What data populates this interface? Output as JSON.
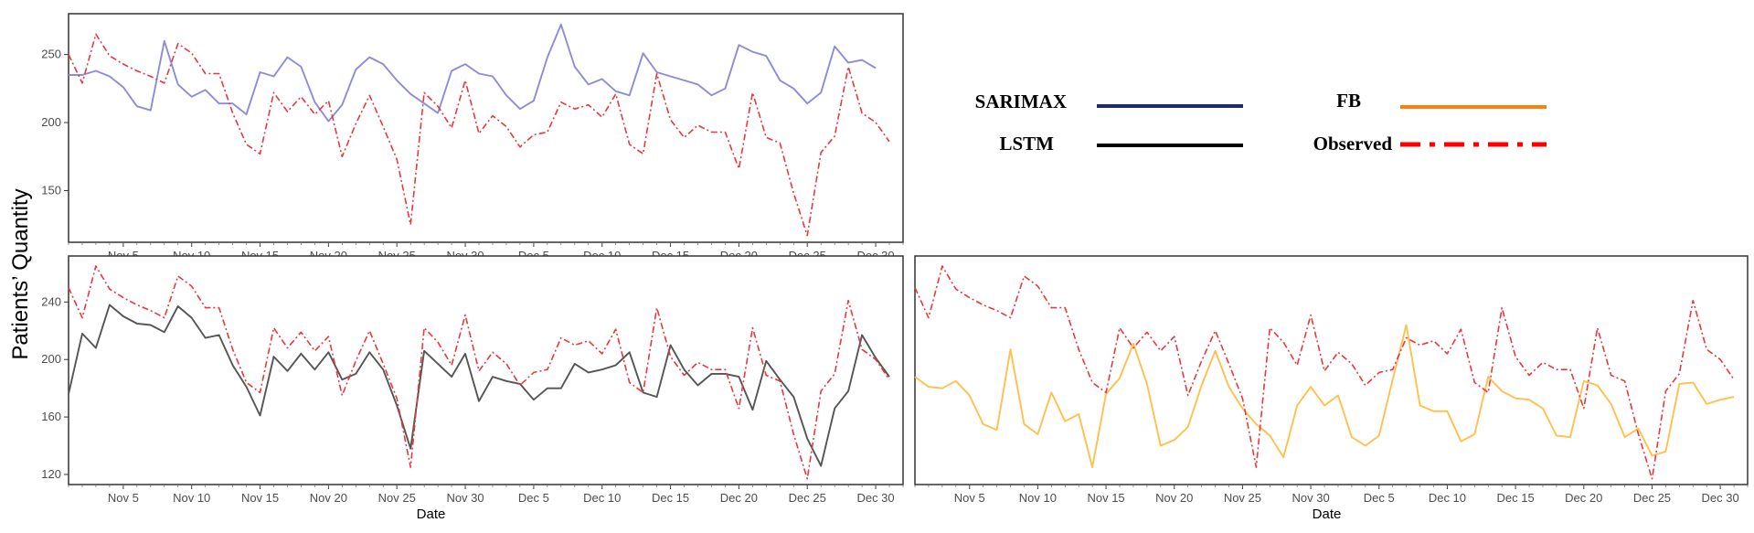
{
  "figure": {
    "ylabel": "Patients’ Quantity"
  },
  "legend": {
    "items": [
      {
        "label": "SARIMAX",
        "color": "#1f2a6b",
        "style": "solid"
      },
      {
        "label": "FB",
        "color": "#ff7f0e",
        "style": "solid"
      },
      {
        "label": "LSTM",
        "color": "#000000",
        "style": "solid"
      },
      {
        "label": "Observed",
        "color": "#ff0000",
        "style": "dashdot"
      }
    ]
  },
  "chart_data": [
    {
      "type": "line",
      "panel": "top-left",
      "xlabel": "",
      "ylim": [
        112,
        280
      ],
      "yticks": [
        150,
        200,
        250
      ],
      "x_tick_labels": [
        "Nov 5",
        "Nov 10",
        "Nov 15",
        "Nov 20",
        "Nov 25",
        "Nov 30",
        "Dec 5",
        "Dec 10",
        "Dec 15",
        "Dec 20",
        "Dec 25",
        "Dec 30"
      ],
      "x_tick_days": [
        5,
        10,
        15,
        20,
        25,
        30,
        35,
        40,
        45,
        50,
        55,
        60
      ],
      "x_start_day": 1,
      "grid": false,
      "series": [
        {
          "name": "SARIMAX",
          "color": "#8c8cd9",
          "style": "solid",
          "values": [
            235,
            235,
            238,
            234,
            226,
            212,
            209,
            260,
            228,
            219,
            224,
            214,
            214,
            206,
            237,
            234,
            248,
            241,
            215,
            201,
            213,
            239,
            248,
            243,
            231,
            221,
            214,
            207,
            238,
            243,
            236,
            234,
            220,
            210,
            216,
            248,
            272,
            241,
            228,
            232,
            223,
            220,
            251,
            237,
            234,
            231,
            228,
            220,
            225,
            257,
            252,
            249,
            231,
            225,
            214,
            222,
            256,
            244,
            246,
            240
          ]
        },
        {
          "name": "Observed",
          "color": "#e8383d",
          "style": "dashdot",
          "values": [
            250,
            229,
            265,
            249,
            243,
            238,
            234,
            229,
            258,
            251,
            236,
            236,
            207,
            184,
            177,
            222,
            208,
            219,
            206,
            216,
            175,
            199,
            220,
            197,
            173,
            125,
            222,
            212,
            196,
            231,
            192,
            205,
            197,
            182,
            191,
            193,
            215,
            210,
            213,
            204,
            221,
            184,
            177,
            236,
            202,
            189,
            198,
            193,
            193,
            166,
            222,
            189,
            185,
            148,
            117,
            178,
            190,
            241,
            207,
            200,
            186
          ]
        }
      ]
    },
    {
      "type": "line",
      "panel": "bottom-left",
      "xlabel": "Date",
      "ylim": [
        113,
        272
      ],
      "yticks": [
        120,
        160,
        200,
        240
      ],
      "x_tick_labels": [
        "Nov 5",
        "Nov 10",
        "Nov 15",
        "Nov 20",
        "Nov 25",
        "Nov 30",
        "Dec 5",
        "Dec 10",
        "Dec 15",
        "Dec 20",
        "Dec 25",
        "Dec 30"
      ],
      "x_tick_days": [
        5,
        10,
        15,
        20,
        25,
        30,
        35,
        40,
        45,
        50,
        55,
        60
      ],
      "x_start_day": 1,
      "grid": false,
      "series": [
        {
          "name": "LSTM",
          "color": "#555555",
          "style": "solid",
          "values": [
            176,
            218,
            208,
            238,
            230,
            225,
            224,
            219,
            237,
            229,
            215,
            217,
            196,
            181,
            161,
            202,
            192,
            204,
            193,
            205,
            186,
            190,
            205,
            193,
            168,
            138,
            206,
            197,
            188,
            204,
            171,
            188,
            185,
            183,
            172,
            180,
            180,
            197,
            191,
            193,
            196,
            205,
            177,
            174,
            210,
            193,
            182,
            190,
            190,
            188,
            165,
            199,
            186,
            174,
            145,
            126,
            166,
            178,
            217,
            201,
            188
          ]
        },
        {
          "name": "Observed",
          "color": "#e8383d",
          "style": "dashdot",
          "values": [
            250,
            229,
            265,
            249,
            243,
            238,
            234,
            229,
            258,
            251,
            236,
            236,
            207,
            184,
            177,
            222,
            208,
            219,
            206,
            216,
            175,
            199,
            220,
            197,
            173,
            125,
            222,
            212,
            196,
            231,
            192,
            205,
            197,
            182,
            191,
            193,
            215,
            210,
            213,
            204,
            221,
            184,
            177,
            236,
            202,
            189,
            198,
            193,
            193,
            166,
            222,
            189,
            185,
            148,
            117,
            178,
            190,
            241,
            207,
            200,
            186
          ]
        }
      ]
    },
    {
      "type": "line",
      "panel": "bottom-right",
      "xlabel": "Date",
      "ylim": [
        113,
        272
      ],
      "yticks": [],
      "x_tick_labels": [
        "Nov 5",
        "Nov 10",
        "Nov 15",
        "Nov 20",
        "Nov 25",
        "Nov 30",
        "Dec 5",
        "Dec 10",
        "Dec 15",
        "Dec 20",
        "Dec 25",
        "Dec 30"
      ],
      "x_tick_days": [
        5,
        10,
        15,
        20,
        25,
        30,
        35,
        40,
        45,
        50,
        55,
        60
      ],
      "x_start_day": 1,
      "grid": false,
      "series": [
        {
          "name": "FB",
          "color": "#ffc04d",
          "style": "solid",
          "values": [
            188,
            181,
            180,
            185,
            175,
            155,
            151,
            207,
            155,
            148,
            177,
            157,
            162,
            125,
            176,
            187,
            211,
            183,
            140,
            144,
            153,
            182,
            206,
            181,
            166,
            155,
            147,
            132,
            168,
            181,
            168,
            175,
            146,
            140,
            147,
            186,
            224,
            168,
            164,
            164,
            143,
            148,
            188,
            178,
            173,
            172,
            166,
            147,
            146,
            185,
            182,
            169,
            146,
            152,
            133,
            136,
            183,
            184,
            169,
            172,
            174
          ]
        },
        {
          "name": "Observed",
          "color": "#e8383d",
          "style": "dashdot",
          "values": [
            250,
            229,
            265,
            249,
            243,
            238,
            234,
            229,
            258,
            251,
            236,
            236,
            207,
            184,
            177,
            222,
            208,
            219,
            206,
            216,
            175,
            199,
            220,
            197,
            173,
            125,
            222,
            212,
            196,
            231,
            192,
            205,
            197,
            182,
            191,
            193,
            215,
            210,
            213,
            204,
            221,
            184,
            177,
            236,
            202,
            189,
            198,
            193,
            193,
            166,
            222,
            189,
            185,
            148,
            117,
            178,
            190,
            241,
            207,
            200,
            186
          ]
        }
      ]
    }
  ]
}
